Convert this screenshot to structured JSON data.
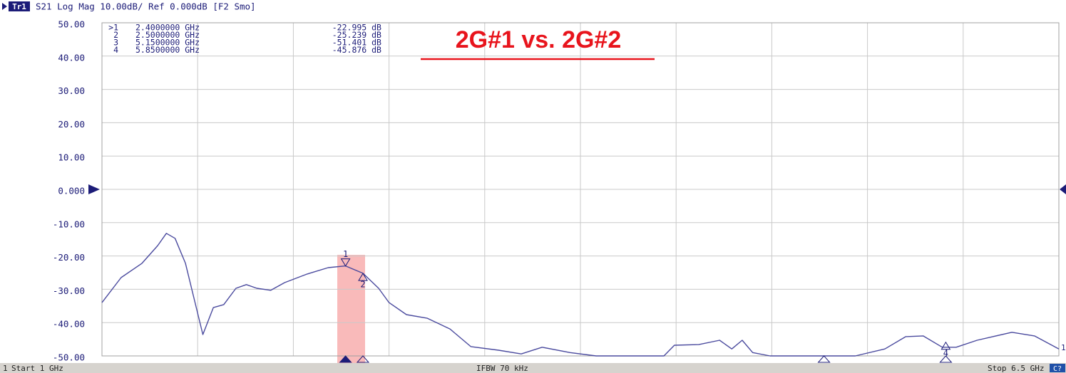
{
  "chart_data": {
    "type": "line",
    "header": {
      "trace": "Tr1",
      "text": "S21 Log Mag 10.00dB/ Ref 0.000dB [F2 Smo]"
    },
    "annotation": "2G#1 vs. 2G#2",
    "x": [
      1.0,
      1.11,
      1.23,
      1.32,
      1.37,
      1.42,
      1.48,
      1.53,
      1.58,
      1.64,
      1.7,
      1.77,
      1.83,
      1.89,
      1.97,
      2.05,
      2.18,
      2.3,
      2.4,
      2.5,
      2.59,
      2.65,
      2.75,
      2.87,
      3.0,
      3.12,
      3.28,
      3.41,
      3.53,
      3.69,
      3.84,
      4.23,
      4.29,
      4.43,
      4.55,
      4.62,
      4.68,
      4.74,
      4.84,
      5.33,
      5.5,
      5.62,
      5.72,
      5.83,
      5.91,
      6.03,
      6.23,
      6.36,
      6.5
    ],
    "series": [
      {
        "name": "S21",
        "color": "#4a4a9e",
        "values": [
          -34,
          -26.5,
          -22.2,
          -16.9,
          -13.2,
          -14.7,
          -22.2,
          -32.9,
          -43.6,
          -35.5,
          -34.6,
          -29.7,
          -28.6,
          -29.7,
          -30.3,
          -28,
          -25.4,
          -23.5,
          -23.0,
          -25.2,
          -29.7,
          -34,
          -37.6,
          -38.7,
          -41.9,
          -47.2,
          -48.3,
          -49.4,
          -47.4,
          -49,
          -50,
          -50,
          -46.8,
          -46.6,
          -45.3,
          -47.9,
          -45.3,
          -49,
          -50,
          -50,
          -47.9,
          -44.2,
          -44,
          -47.4,
          -47.4,
          -45.3,
          -42.9,
          -44,
          -47.9
        ]
      }
    ],
    "xlim": [
      1,
      6.5
    ],
    "xticks": [
      1,
      1.55,
      2.1,
      2.65,
      3.2,
      3.75,
      4.3,
      4.85,
      5.4,
      5.95,
      6.5
    ],
    "ylim": [
      -50,
      50
    ],
    "yticks": [
      {
        "value": 50,
        "label": "50.00"
      },
      {
        "value": 40,
        "label": "40.00"
      },
      {
        "value": 30,
        "label": "30.00"
      },
      {
        "value": 20,
        "label": "20.00"
      },
      {
        "value": 10,
        "label": "10.00"
      },
      {
        "value": 0,
        "label": "0.000"
      },
      {
        "value": -10,
        "label": "-10.00"
      },
      {
        "value": -20,
        "label": "-20.00"
      },
      {
        "value": -30,
        "label": "-30.00"
      },
      {
        "value": -40,
        "label": "-40.00"
      },
      {
        "value": -50,
        "label": "-50.00"
      }
    ],
    "grid": true,
    "markers": [
      {
        "name": ">1",
        "tag": "1",
        "x": 2.4,
        "x_label": "2.4000000 GHz",
        "y": -22.995,
        "y_label": "-22.995 dB",
        "active": true
      },
      {
        "name": "2",
        "tag": "2",
        "x": 2.5,
        "x_label": "2.5000000 GHz",
        "y": -25.239,
        "y_label": "-25.239 dB",
        "active": false
      },
      {
        "name": "3",
        "tag": "3",
        "x": 5.15,
        "x_label": "5.1500000 GHz",
        "y": -51.401,
        "y_label": "-51.401 dB",
        "active": false
      },
      {
        "name": "4",
        "tag": "4",
        "x": 5.85,
        "x_label": "5.8500000 GHz",
        "y": -45.876,
        "y_label": "-45.876 dB",
        "active": false
      }
    ],
    "trace_number": "1",
    "footer": {
      "channel": "1",
      "start": "Start 1 GHz",
      "ifbw": "IFBW 70 kHz",
      "stop": "Stop 6.5 GHz",
      "status": "C?"
    }
  }
}
